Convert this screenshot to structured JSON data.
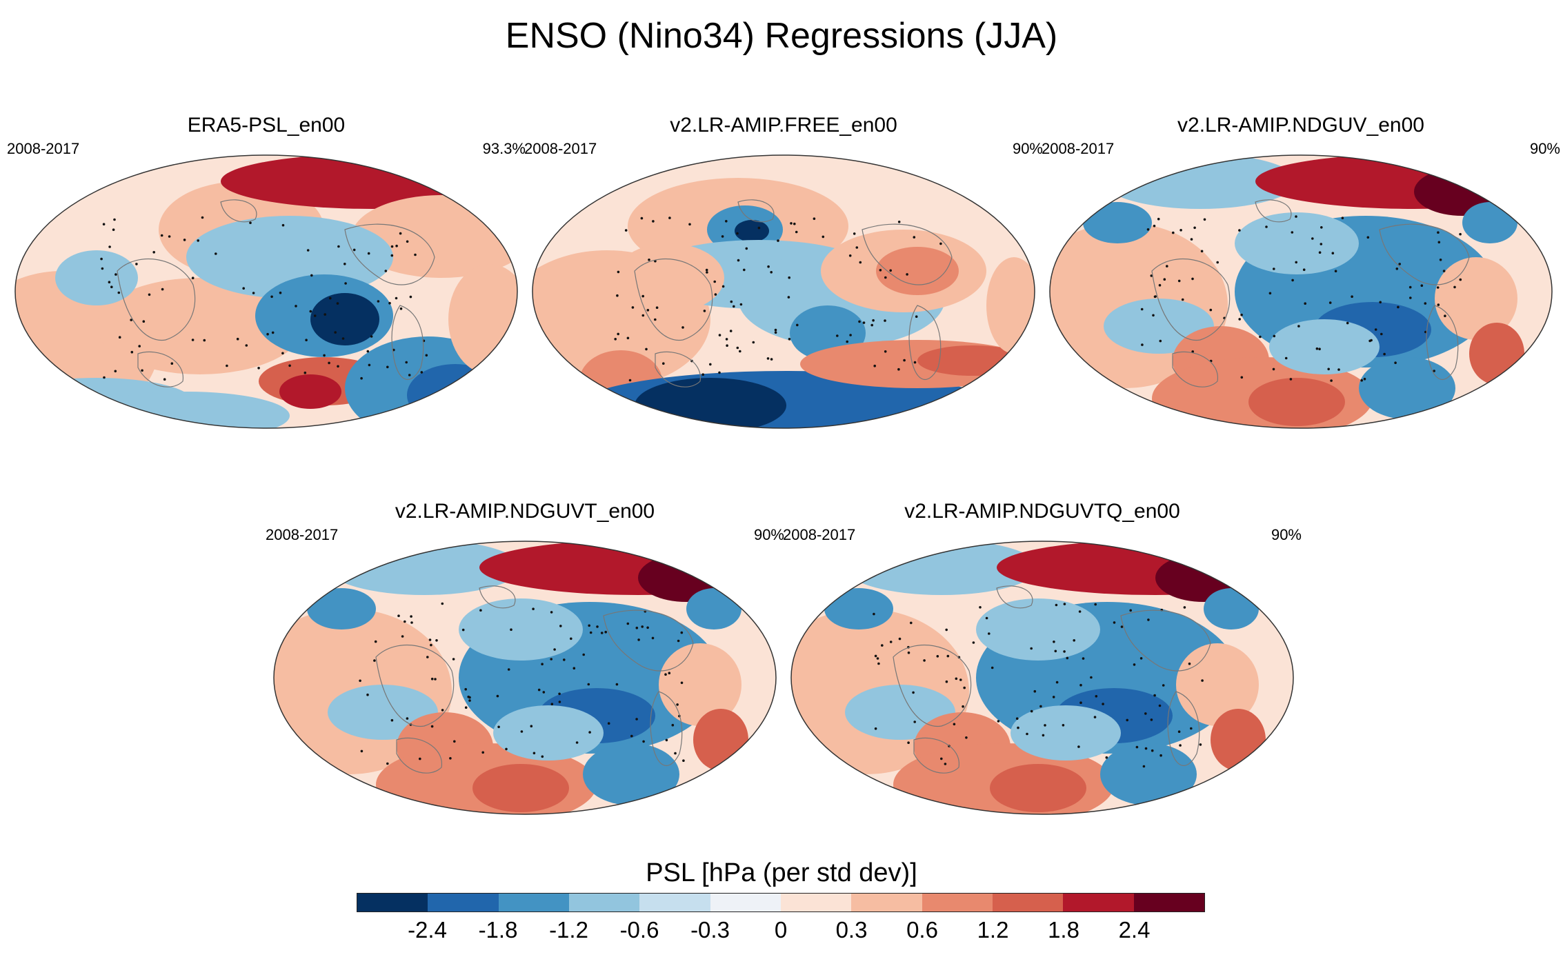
{
  "figure": {
    "title": "ENSO (Nino34) Regressions (JJA)"
  },
  "panels": [
    {
      "title": "ERA5-PSL_en00",
      "period": "2008-2017",
      "significance": "93.3%"
    },
    {
      "title": "v2.LR-AMIP.FREE_en00",
      "period": "2008-2017",
      "significance": "90%"
    },
    {
      "title": "v2.LR-AMIP.NDGUV_en00",
      "period": "2008-2017",
      "significance": "90%"
    },
    {
      "title": "v2.LR-AMIP.NDGUVT_en00",
      "period": "2008-2017",
      "significance": "90%"
    },
    {
      "title": "v2.LR-AMIP.NDGUVTQ_en00",
      "period": "2008-2017",
      "significance": "90%"
    }
  ],
  "colorbar": {
    "title": "PSL [hPa (per std dev)]",
    "ticks": [
      "-2.4",
      "-1.8",
      "-1.2",
      "-0.6",
      "-0.3",
      "0",
      "0.3",
      "0.6",
      "1.2",
      "1.8",
      "2.4"
    ],
    "colors": [
      "#053061",
      "#2166ac",
      "#4393c3",
      "#92c5de",
      "#c6dfee",
      "#eef2f7",
      "#fbe3d6",
      "#f6bda2",
      "#e8896e",
      "#d6604d",
      "#b2182b",
      "#67001f"
    ]
  }
}
